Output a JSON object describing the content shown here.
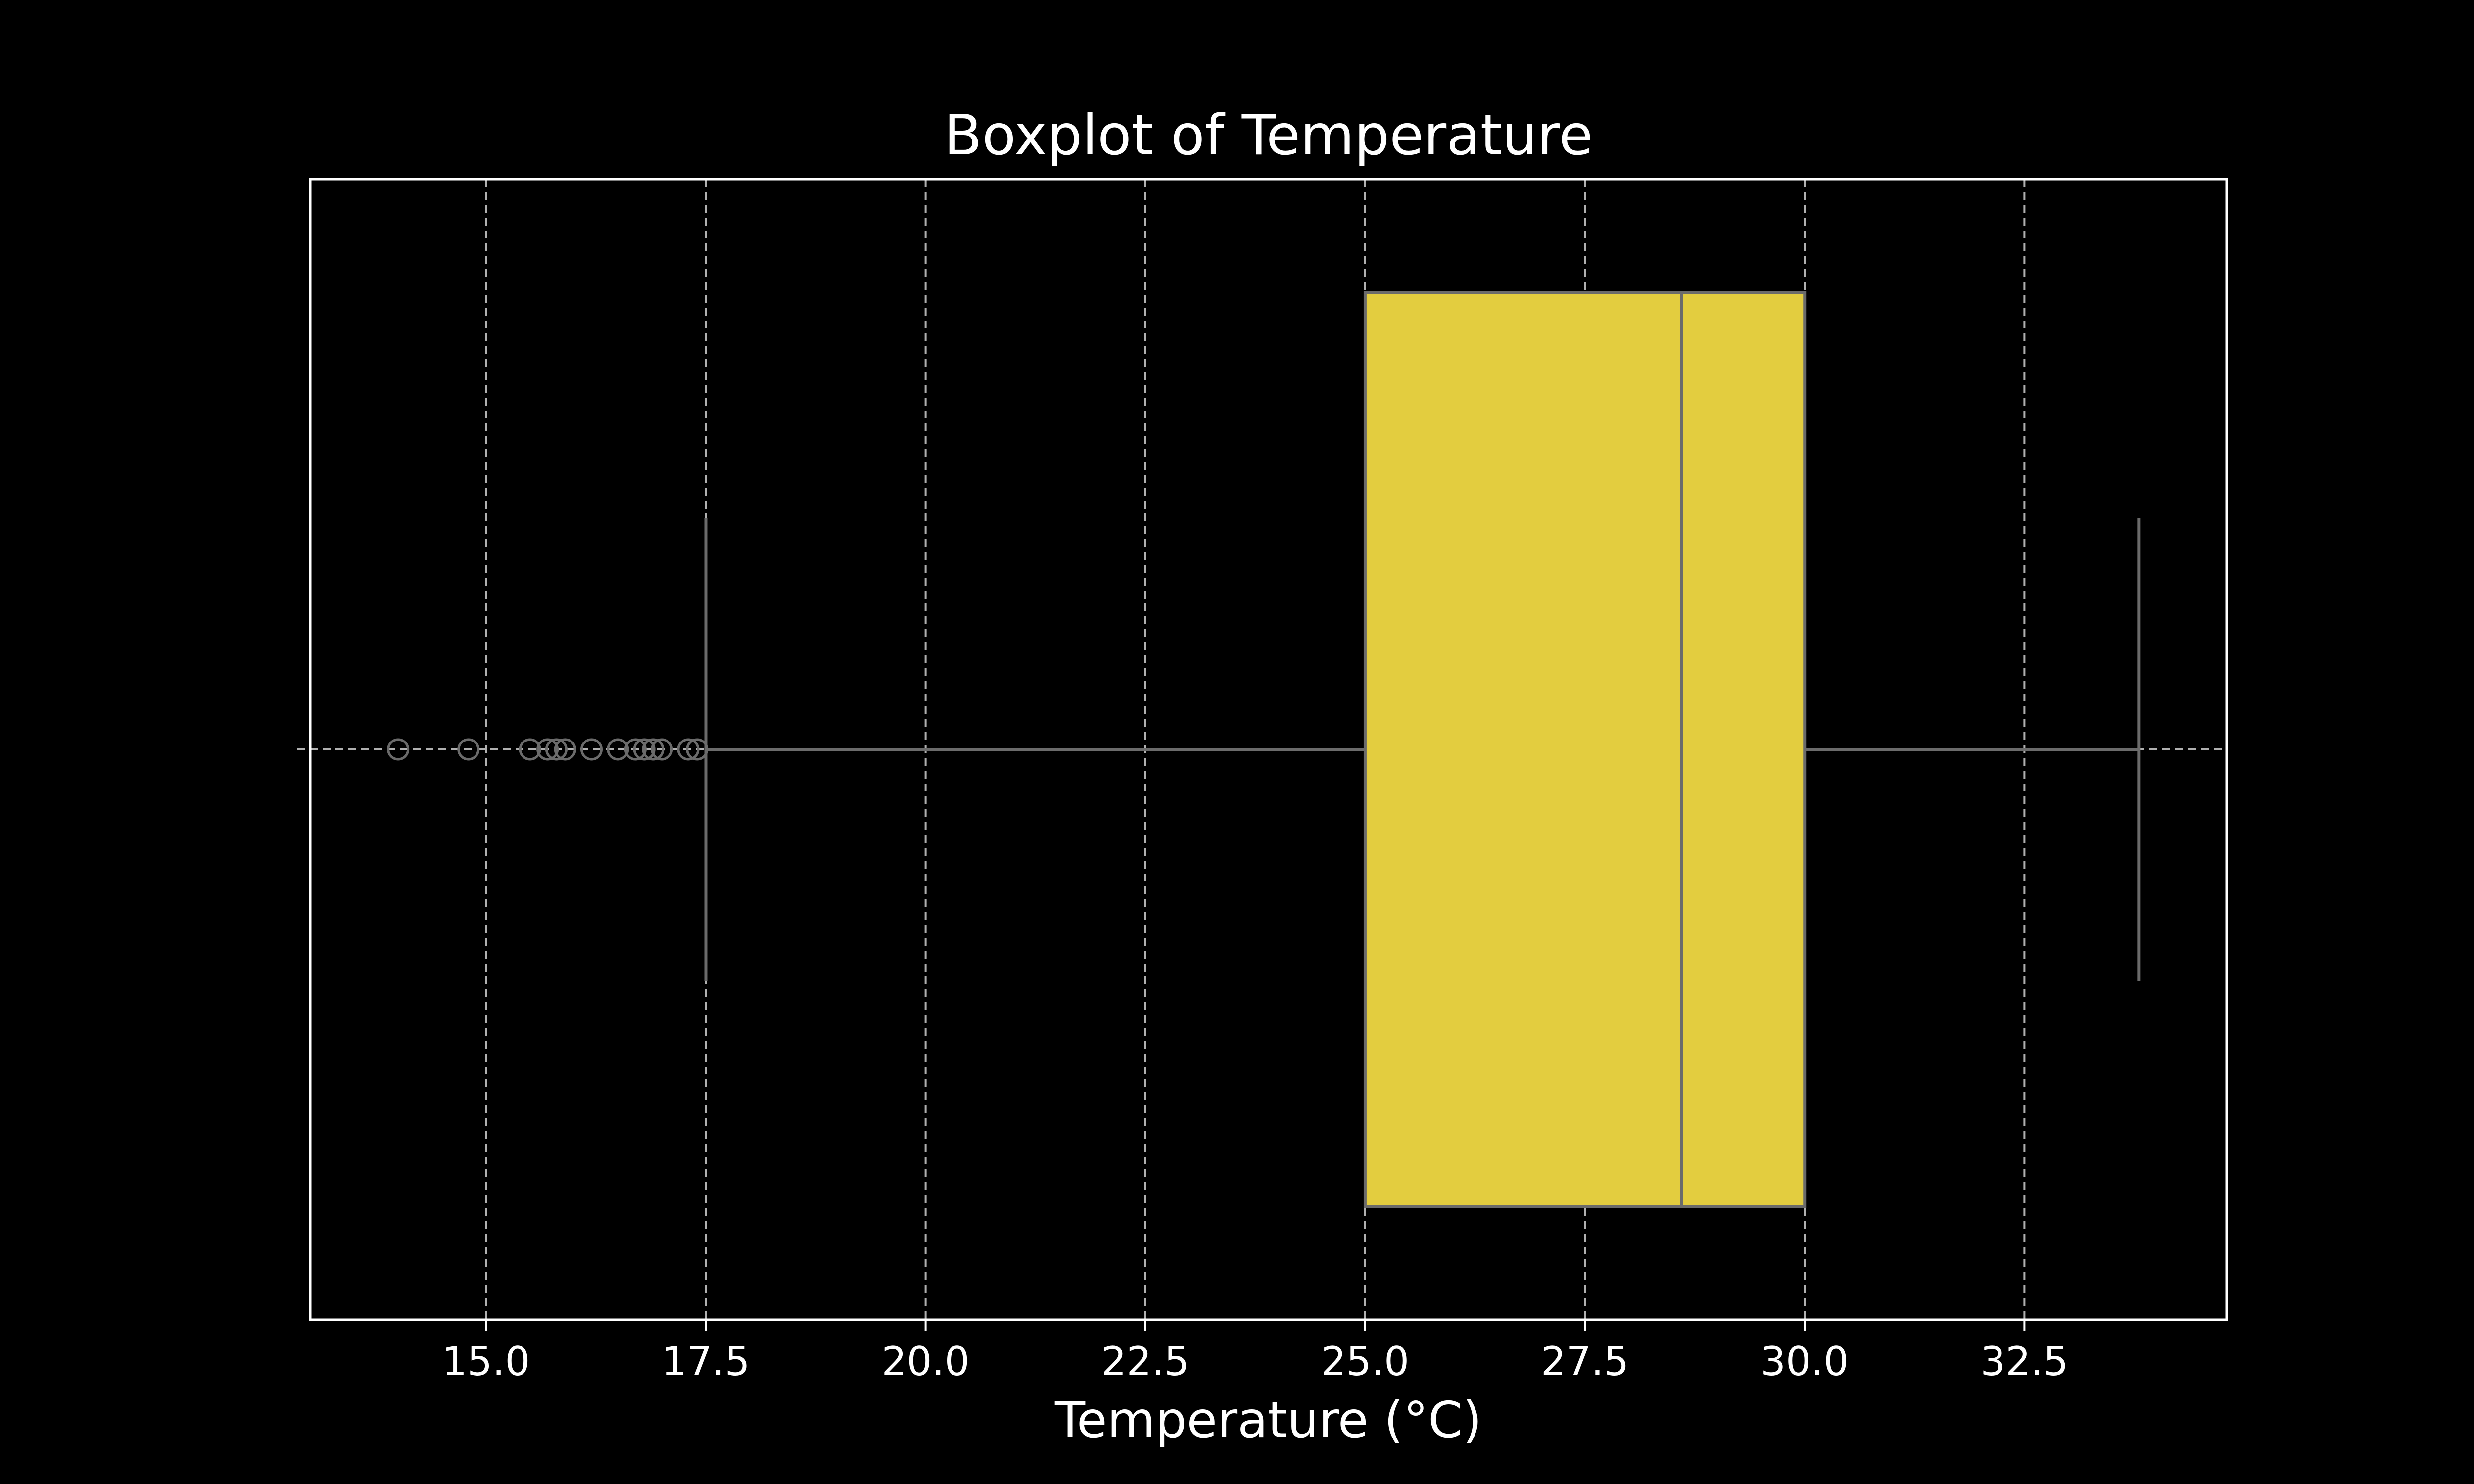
{
  "chart_data": {
    "type": "boxplot",
    "orientation": "horizontal",
    "title": "Boxplot of Temperature",
    "xlabel": "Temperature (°C)",
    "ylabel": "",
    "xlim": [
      13.0,
      34.8
    ],
    "xticks": [
      15.0,
      17.5,
      20.0,
      22.5,
      25.0,
      27.5,
      30.0,
      32.5
    ],
    "xtick_labels": [
      "15.0",
      "17.5",
      "20.0",
      "22.5",
      "25.0",
      "27.5",
      "30.0",
      "32.5"
    ],
    "grid": true,
    "grid_style": "dashed",
    "box": {
      "whisker_low": 17.5,
      "q1": 25.0,
      "median": 28.6,
      "q3": 30.0,
      "whisker_high": 33.8,
      "color": "#e3cd3f",
      "edge_color": "#6b6b6b"
    },
    "outliers": [
      14.0,
      14.8,
      15.5,
      15.7,
      15.8,
      15.9,
      16.2,
      16.5,
      16.7,
      16.8,
      16.9,
      17.0,
      17.3,
      17.4
    ],
    "colors": {
      "background": "#000000",
      "foreground": "#ffffff",
      "grid": "#b0b0b0",
      "line": "#6b6b6b"
    }
  }
}
